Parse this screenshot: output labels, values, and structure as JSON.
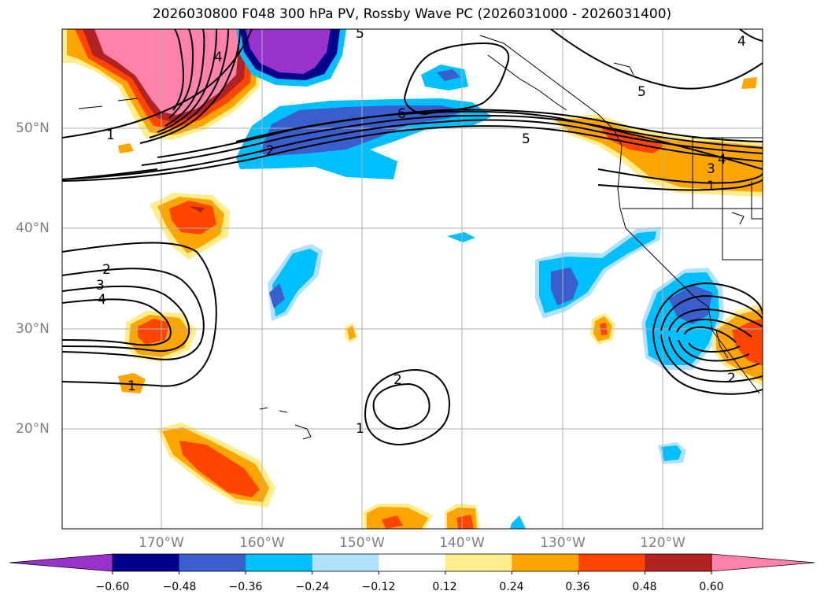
{
  "title": "2026030800 F048 300 hPa PV, Rossby Wave PC (2026031000 - 2026031400)",
  "map": {
    "lat_labels": [
      "50°N",
      "40°N",
      "30°N",
      "20°N"
    ],
    "lon_labels": [
      "170°W",
      "160°W",
      "150°W",
      "140°W",
      "130°W",
      "120°W"
    ],
    "contour_labels": [
      {
        "text": "1",
        "id": "c1"
      },
      {
        "text": "2",
        "id": "c2"
      },
      {
        "text": "6",
        "id": "c3"
      },
      {
        "text": "5",
        "id": "c4"
      },
      {
        "text": "5",
        "id": "c5"
      },
      {
        "text": "4",
        "id": "c6"
      },
      {
        "text": "3",
        "id": "c7"
      },
      {
        "text": "4",
        "id": "c8"
      },
      {
        "text": "1",
        "id": "c9"
      },
      {
        "text": "2",
        "id": "c10"
      },
      {
        "text": "3",
        "id": "c11"
      },
      {
        "text": "4",
        "id": "c12"
      },
      {
        "text": "1",
        "id": "c13"
      },
      {
        "text": "2",
        "id": "c14"
      },
      {
        "text": "1",
        "id": "c15"
      },
      {
        "text": "2",
        "id": "c16"
      },
      {
        "text": "5",
        "id": "c17"
      },
      {
        "text": "4",
        "id": "c18"
      }
    ]
  },
  "colorbar": {
    "colors": [
      "#9932cc",
      "#00008b",
      "#3a5fcd",
      "#00bfff",
      "#b0e2ff",
      "#ffffff",
      "#ffec8b",
      "#ffa500",
      "#ff4500",
      "#b22222",
      "#ff82ab"
    ],
    "tick_labels": [
      "−0.60",
      "−0.48",
      "−0.36",
      "−0.24",
      "−0.12",
      "0.12",
      "0.24",
      "0.36",
      "0.48",
      "0.60"
    ]
  }
}
